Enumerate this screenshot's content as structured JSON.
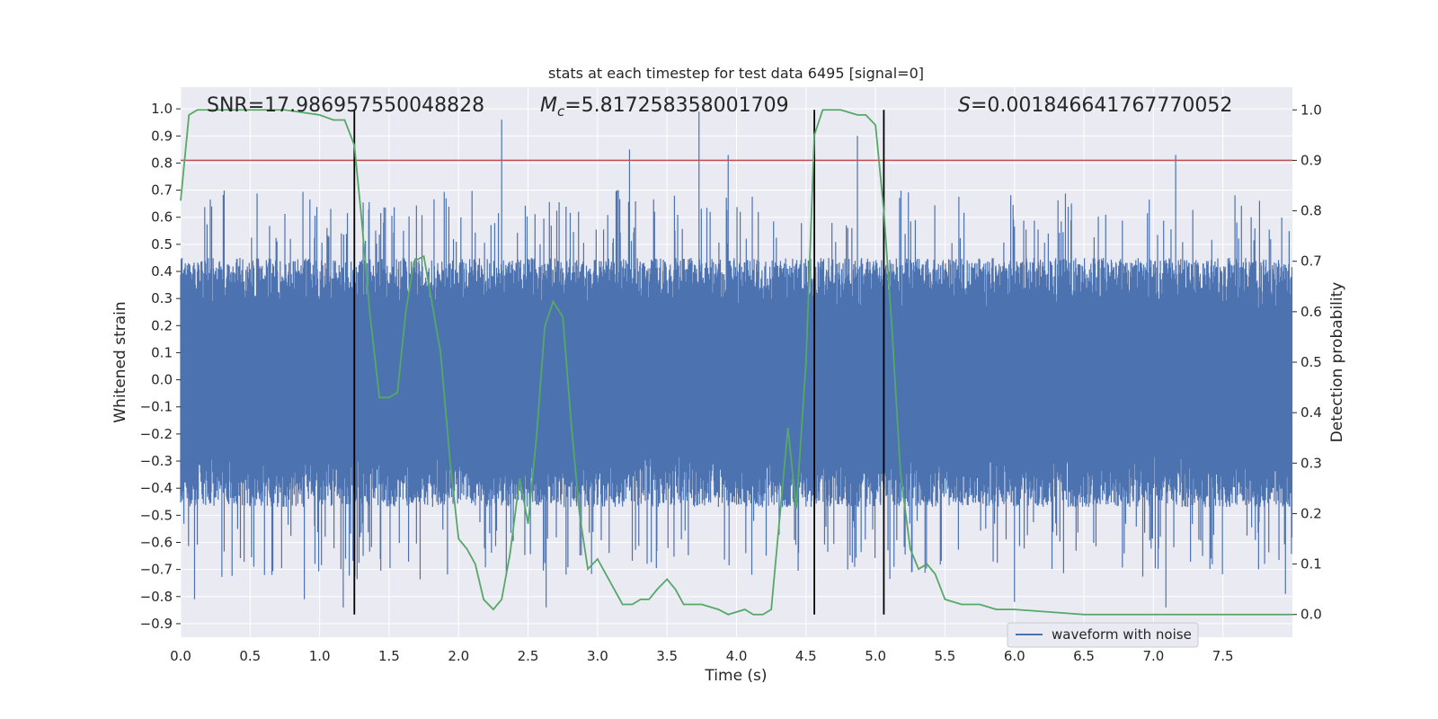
{
  "chart_data": {
    "type": "line",
    "title": "stats at each timestep for test data 6495 [signal=0]",
    "xlabel": "Time (s)",
    "ylabel_left": "Whitened strain",
    "ylabel_right": "Detection probability",
    "xlim": [
      0.0,
      8.0
    ],
    "ylim_left": [
      -0.95,
      1.08
    ],
    "ylim_right": [
      -0.045,
      1.045
    ],
    "x_ticks": [
      "0.0",
      "0.5",
      "1.0",
      "1.5",
      "2.0",
      "2.5",
      "3.0",
      "3.5",
      "4.0",
      "4.5",
      "5.0",
      "5.5",
      "6.0",
      "6.5",
      "7.0",
      "7.5"
    ],
    "y_left_ticks": [
      "1.0",
      "0.9",
      "0.8",
      "0.7",
      "0.6",
      "0.5",
      "0.4",
      "0.3",
      "0.2",
      "0.1",
      "0.0",
      "−0.1",
      "−0.2",
      "−0.3",
      "−0.4",
      "−0.5",
      "−0.6",
      "−0.7",
      "−0.8",
      "−0.9"
    ],
    "y_right_ticks": [
      "1.0",
      "0.9",
      "0.8",
      "0.7",
      "0.6",
      "0.5",
      "0.4",
      "0.3",
      "0.2",
      "0.1",
      "0.0"
    ],
    "grid": true,
    "legend_position": "bottom-right",
    "annotations": {
      "snr": "SNR=17.986957550048828",
      "mc_symbol": "M",
      "mc_sub": "c",
      "mc_value": "=5.817258358001709",
      "s_symbol": "S",
      "s_value": "=0.001846641767770052"
    },
    "threshold_probability": 0.9,
    "detection_markers_x": [
      1.25,
      4.56,
      5.06
    ],
    "series": [
      {
        "name": "waveform with noise",
        "axis": "left",
        "color": "#4c72b0",
        "description_kind": "noise",
        "envelope_top": 0.45,
        "envelope_bottom": -0.47,
        "peak_spikes": [
          {
            "x": 2.31,
            "y": 0.96
          },
          {
            "x": 3.23,
            "y": 0.85
          },
          {
            "x": 3.73,
            "y": 0.99
          },
          {
            "x": 3.94,
            "y": 0.83
          },
          {
            "x": 4.87,
            "y": 0.9
          },
          {
            "x": 7.16,
            "y": 0.83
          }
        ],
        "trough_spikes": [
          {
            "x": 0.1,
            "y": -0.81
          },
          {
            "x": 0.89,
            "y": -0.81
          },
          {
            "x": 1.17,
            "y": -0.84
          },
          {
            "x": 2.63,
            "y": -0.84
          },
          {
            "x": 4.8,
            "y": -0.7
          },
          {
            "x": 6.0,
            "y": -0.82
          },
          {
            "x": 7.09,
            "y": -0.84
          },
          {
            "x": 7.95,
            "y": -0.79
          }
        ]
      },
      {
        "name": "",
        "axis": "right",
        "color": "#55a868",
        "x": [
          0.0,
          0.06,
          0.12,
          0.25,
          0.5,
          0.75,
          1.0,
          1.1,
          1.18,
          1.25,
          1.3,
          1.36,
          1.43,
          1.5,
          1.56,
          1.62,
          1.68,
          1.75,
          1.87,
          1.94,
          2.0,
          2.06,
          2.12,
          2.18,
          2.25,
          2.31,
          2.37,
          2.44,
          2.5,
          2.56,
          2.62,
          2.68,
          2.75,
          2.81,
          2.87,
          2.93,
          3.0,
          3.06,
          3.12,
          3.18,
          3.25,
          3.31,
          3.37,
          3.43,
          3.5,
          3.56,
          3.62,
          3.68,
          3.75,
          3.87,
          3.94,
          4.06,
          4.12,
          4.19,
          4.25,
          4.31,
          4.37,
          4.43,
          4.5,
          4.56,
          4.62,
          4.68,
          4.75,
          4.87,
          4.93,
          5.0,
          5.06,
          5.12,
          5.18,
          5.25,
          5.31,
          5.37,
          5.43,
          5.5,
          5.62,
          5.75,
          5.87,
          6.0,
          6.5,
          7.0,
          7.5,
          7.75,
          8.0
        ],
        "y": [
          0.82,
          0.99,
          1.0,
          1.0,
          1.0,
          1.0,
          0.99,
          0.98,
          0.98,
          0.93,
          0.79,
          0.6,
          0.43,
          0.43,
          0.44,
          0.6,
          0.7,
          0.71,
          0.52,
          0.3,
          0.15,
          0.13,
          0.1,
          0.03,
          0.01,
          0.03,
          0.12,
          0.27,
          0.18,
          0.35,
          0.57,
          0.62,
          0.59,
          0.38,
          0.2,
          0.09,
          0.11,
          0.08,
          0.05,
          0.02,
          0.02,
          0.03,
          0.03,
          0.05,
          0.07,
          0.05,
          0.02,
          0.02,
          0.02,
          0.01,
          0.0,
          0.01,
          0.0,
          0.0,
          0.01,
          0.19,
          0.37,
          0.21,
          0.5,
          0.95,
          1.0,
          1.0,
          1.0,
          0.99,
          0.99,
          0.97,
          0.8,
          0.56,
          0.28,
          0.13,
          0.09,
          0.1,
          0.08,
          0.03,
          0.02,
          0.02,
          0.01,
          0.01,
          0.0,
          0.0,
          0.0,
          0.0,
          0.0
        ]
      }
    ]
  }
}
